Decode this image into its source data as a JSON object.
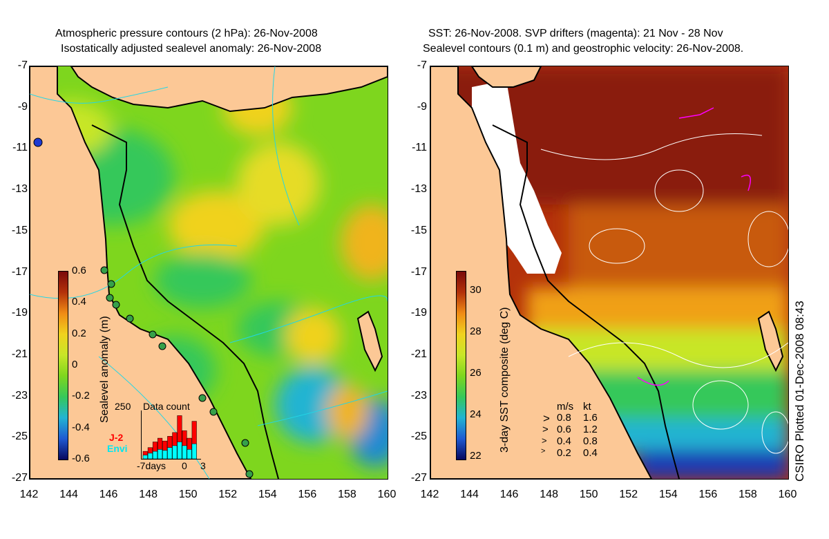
{
  "left_panel": {
    "title_line1": "Atmospheric pressure contours (2 hPa): 26-Nov-2008",
    "title_line2": "Isostatically adjusted sealevel anomaly: 26-Nov-2008",
    "colorbar_label": "Sealevel anomaly (m)",
    "colorbar_ticks": [
      "0.6",
      "0.4",
      "0.2",
      "0",
      "-0.2",
      "-0.4",
      "-0.6"
    ],
    "inset": {
      "title": "Data count",
      "ymax_label": "250",
      "x_ticks": [
        "-7days",
        "0",
        "3"
      ],
      "series": [
        {
          "name": "J-2",
          "color": "#ff0000"
        },
        {
          "name": "Envi",
          "color": "#00ffff"
        }
      ],
      "bars_total": [
        40,
        60,
        90,
        110,
        95,
        120,
        140,
        230,
        150,
        110,
        200
      ],
      "bars_envi": [
        20,
        30,
        40,
        50,
        45,
        60,
        70,
        90,
        70,
        50,
        80
      ]
    }
  },
  "right_panel": {
    "title_line1": "SST: 26-Nov-2008. SVP drifters (magenta): 21 Nov - 28 Nov",
    "title_line2": "Sealevel contours (0.1 m) and geostrophic velocity: 26-Nov-2008.",
    "colorbar_label": "3-day SST composite (deg C)",
    "colorbar_ticks": [
      "30",
      "28",
      "26",
      "24",
      "22"
    ],
    "velocity_legend": {
      "header_ms": "m/s",
      "header_kt": "kt",
      "rows": [
        {
          "ms": "0.8",
          "kt": "1.6"
        },
        {
          "ms": "0.6",
          "kt": "1.2"
        },
        {
          "ms": "0.4",
          "kt": "0.8"
        },
        {
          "ms": "0.2",
          "kt": "0.4"
        }
      ]
    }
  },
  "axes": {
    "y_ticks": [
      "-7",
      "-9",
      "-11",
      "-13",
      "-15",
      "-17",
      "-19",
      "-21",
      "-23",
      "-25",
      "-27"
    ],
    "x_ticks": [
      "142",
      "144",
      "146",
      "148",
      "150",
      "152",
      "154",
      "156",
      "158",
      "160"
    ]
  },
  "credit": "CSIRO Plotted 01-Dec-2008 08:43",
  "colors": {
    "land": "#fcc896",
    "sla_colormap": [
      "#08085e",
      "#1e5ad2",
      "#22b4d2",
      "#36c85a",
      "#7ed61e",
      "#c8e628",
      "#f0d21e",
      "#f08c14",
      "#b4320a",
      "#7a0a0a"
    ],
    "sst_colormap": [
      "#08085e",
      "#1e5ad2",
      "#22b4d2",
      "#36c85a",
      "#7ed61e",
      "#c8e628",
      "#f0d21e",
      "#f08c14",
      "#b4320a",
      "#7a0a0a"
    ]
  }
}
